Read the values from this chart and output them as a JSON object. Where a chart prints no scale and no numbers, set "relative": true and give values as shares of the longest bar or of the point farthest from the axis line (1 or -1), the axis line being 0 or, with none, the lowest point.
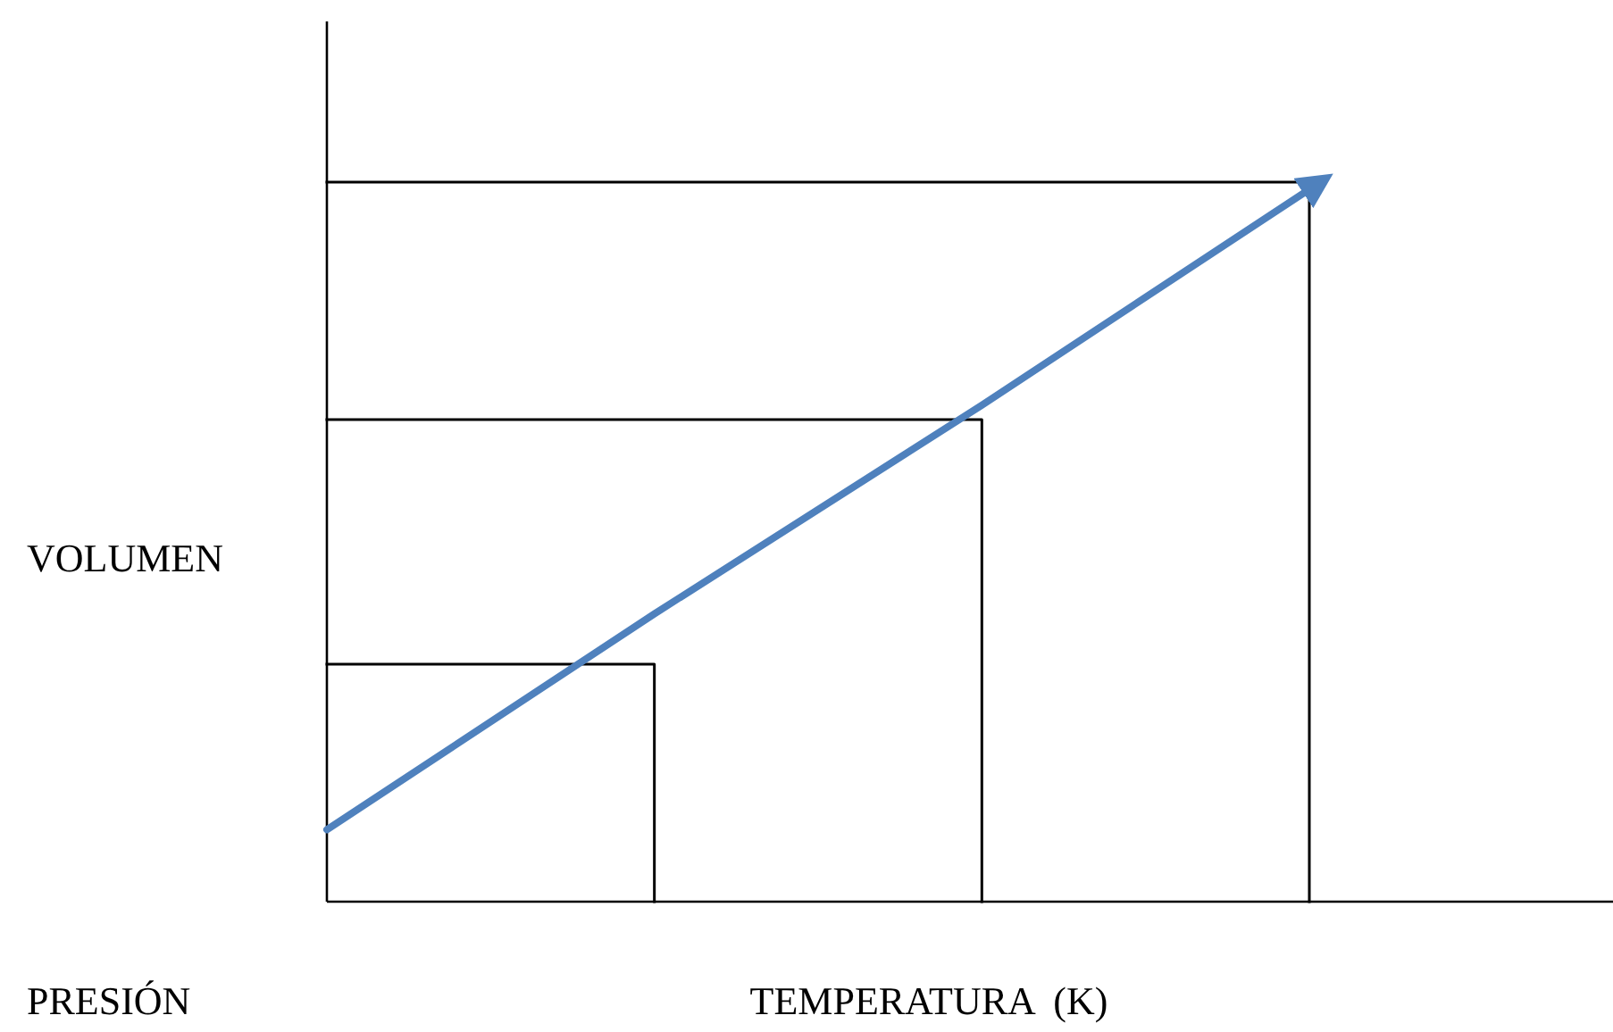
{
  "chart_data": {
    "type": "line",
    "relative": true,
    "categories": [
      null,
      null,
      null,
      null
    ],
    "ylabel": "VOLUMEN",
    "xlabel": "TEMPERATURA  (K)",
    "annotations": [
      "PRESIÓN"
    ],
    "marker": "none",
    "series": [
      {
        "type": "step",
        "color": "#000000",
        "values": [
          0.33,
          0,
          null,
          null
        ]
      },
      {
        "type": "step",
        "color": "#000000",
        "values": [
          0.67,
          0.67,
          0,
          null
        ]
      },
      {
        "type": "step",
        "color": "#000000",
        "values": [
          1,
          1,
          1,
          0
        ]
      },
      {
        "color": "#4f81bd",
        "values": [
          0.1,
          0.4,
          0.69,
          0.99
        ]
      }
    ]
  }
}
